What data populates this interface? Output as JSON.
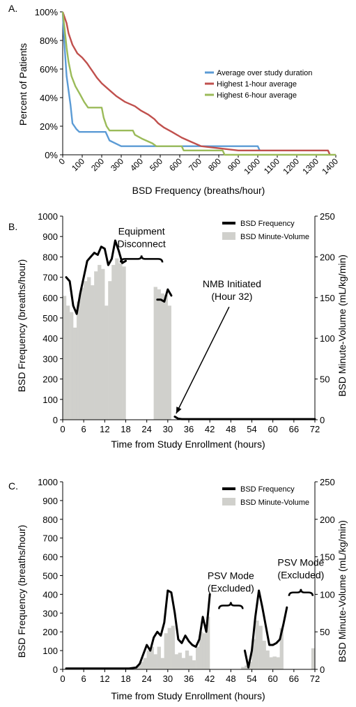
{
  "chart_data": [
    {
      "panel_label": "A.",
      "type": "line",
      "xlabel": "BSD Frequency (breaths/hour)",
      "ylabel": "Percent of Patients",
      "xlim": [
        0,
        1400
      ],
      "ylim": [
        0,
        100
      ],
      "x_ticks": [
        "0",
        "100",
        "200",
        "300",
        "400",
        "500",
        "600",
        "700",
        "800",
        "900",
        "1000",
        "1100",
        "1200",
        "1300",
        "1400"
      ],
      "y_ticks": [
        "0%",
        "20%",
        "40%",
        "60%",
        "80%",
        "100%"
      ],
      "legend_position": "right",
      "series": [
        {
          "name": "Average over study duration",
          "color": "#5b9bd5",
          "points": [
            [
              0,
              100
            ],
            [
              5,
              85
            ],
            [
              10,
              75
            ],
            [
              15,
              65
            ],
            [
              20,
              55
            ],
            [
              30,
              45
            ],
            [
              40,
              35
            ],
            [
              50,
              22
            ],
            [
              60,
              20
            ],
            [
              70,
              18
            ],
            [
              85,
              16
            ],
            [
              220,
              16
            ],
            [
              240,
              10
            ],
            [
              300,
              6
            ],
            [
              310,
              6
            ],
            [
              1000,
              6
            ],
            [
              1010,
              3
            ]
          ]
        },
        {
          "name": "Highest 1-hour average",
          "color": "#c0504d",
          "points": [
            [
              0,
              100
            ],
            [
              10,
              96
            ],
            [
              20,
              92
            ],
            [
              30,
              85
            ],
            [
              50,
              77
            ],
            [
              75,
              71
            ],
            [
              100,
              68
            ],
            [
              125,
              64
            ],
            [
              140,
              61
            ],
            [
              155,
              58
            ],
            [
              175,
              54
            ],
            [
              200,
              50
            ],
            [
              225,
              47
            ],
            [
              250,
              44
            ],
            [
              275,
              41
            ],
            [
              320,
              37
            ],
            [
              370,
              34
            ],
            [
              400,
              31
            ],
            [
              440,
              28
            ],
            [
              470,
              25
            ],
            [
              490,
              22
            ],
            [
              520,
              19
            ],
            [
              560,
              16
            ],
            [
              610,
              12
            ],
            [
              660,
              9
            ],
            [
              710,
              6
            ],
            [
              900,
              3
            ],
            [
              1360,
              3
            ],
            [
              1370,
              0
            ]
          ]
        },
        {
          "name": "Highest 6-hour average",
          "color": "#9bbb59",
          "points": [
            [
              0,
              100
            ],
            [
              10,
              88
            ],
            [
              20,
              75
            ],
            [
              30,
              65
            ],
            [
              45,
              55
            ],
            [
              65,
              48
            ],
            [
              90,
              42
            ],
            [
              110,
              37
            ],
            [
              130,
              33
            ],
            [
              200,
              33
            ],
            [
              210,
              26
            ],
            [
              225,
              20
            ],
            [
              240,
              17
            ],
            [
              360,
              17
            ],
            [
              370,
              14
            ],
            [
              410,
              11
            ],
            [
              460,
              8
            ],
            [
              480,
              6
            ],
            [
              610,
              6
            ],
            [
              620,
              3
            ],
            [
              820,
              3
            ],
            [
              830,
              0
            ],
            [
              1400,
              0
            ]
          ]
        }
      ]
    },
    {
      "panel_label": "B.",
      "type": "bar+line",
      "xlabel": "Time from Study Enrollment (hours)",
      "ylabel_left": "BSD Frequency (breaths/hour)",
      "ylabel_right": "BSD Minute-Volume (mL/kg/min)",
      "xlim": [
        0,
        72
      ],
      "ylim_left": [
        0,
        1000
      ],
      "ylim_right": [
        0,
        250
      ],
      "x_ticks": [
        "0",
        "6",
        "12",
        "18",
        "24",
        "30",
        "36",
        "42",
        "48",
        "54",
        "60",
        "66",
        "72"
      ],
      "y_ticks_left": [
        "0",
        "100",
        "200",
        "300",
        "400",
        "500",
        "600",
        "700",
        "800",
        "900",
        "1000"
      ],
      "y_ticks_right": [
        "0",
        "50",
        "100",
        "150",
        "200",
        "250"
      ],
      "legend_position": "top-right",
      "bar_series": {
        "name": "BSD Minute-Volume",
        "color": "#d0d0cc",
        "hours": [
          1,
          2,
          3,
          4,
          5,
          6,
          7,
          8,
          9,
          10,
          11,
          12,
          13,
          14,
          15,
          16,
          17,
          18,
          27,
          28,
          29,
          30,
          31
        ],
        "values": [
          152,
          140,
          132,
          113,
          145,
          162,
          170,
          175,
          165,
          182,
          190,
          185,
          140,
          170,
          190,
          198,
          192,
          188,
          163,
          160,
          155,
          153,
          140
        ]
      },
      "line_series": {
        "name": "BSD Frequency",
        "color": "#000000",
        "segments": [
          [
            [
              1,
              700
            ],
            [
              2,
              680
            ],
            [
              3,
              560
            ],
            [
              4,
              520
            ],
            [
              5,
              620
            ],
            [
              6,
              700
            ],
            [
              7,
              780
            ],
            [
              8,
              800
            ],
            [
              9,
              820
            ],
            [
              10,
              810
            ],
            [
              11,
              850
            ],
            [
              12,
              840
            ],
            [
              13,
              760
            ],
            [
              14,
              790
            ],
            [
              15,
              880
            ],
            [
              16,
              830
            ],
            [
              17,
              770
            ],
            [
              18,
              780
            ]
          ],
          [
            [
              27,
              590
            ],
            [
              28,
              590
            ],
            [
              29,
              580
            ],
            [
              30,
              640
            ],
            [
              31,
              610
            ]
          ],
          [
            [
              32,
              15
            ],
            [
              33,
              5
            ],
            [
              34,
              3
            ],
            [
              72,
              3
            ]
          ]
        ]
      },
      "annotations": [
        {
          "text": [
            "Equipment",
            "Disconnect"
          ],
          "hour": 22.5,
          "value": 790,
          "type": "brace"
        },
        {
          "text": [
            "NMB Initiated",
            "(Hour 32)"
          ],
          "hour": 32,
          "value": 10,
          "type": "arrow"
        }
      ]
    },
    {
      "panel_label": "C.",
      "type": "bar+line",
      "xlabel": "Time from Study Enrollment (hours)",
      "ylabel_left": "BSD Frequency (breaths/hour)",
      "ylabel_right": "BSD Minute-Volume (mL/kg/min)",
      "xlim": [
        0,
        72
      ],
      "ylim_left": [
        0,
        1000
      ],
      "ylim_right": [
        0,
        250
      ],
      "x_ticks": [
        "0",
        "6",
        "12",
        "18",
        "24",
        "30",
        "36",
        "42",
        "48",
        "54",
        "60",
        "66",
        "72"
      ],
      "y_ticks_left": [
        "0",
        "100",
        "200",
        "300",
        "400",
        "500",
        "600",
        "700",
        "800",
        "900",
        "1000"
      ],
      "y_ticks_right": [
        "0",
        "50",
        "100",
        "150",
        "200",
        "250"
      ],
      "legend_position": "top-right",
      "bar_series": {
        "name": "BSD Minute-Volume",
        "color": "#d0d0cc",
        "hours": [
          21,
          22,
          23,
          24,
          25,
          26,
          27,
          28,
          29,
          30,
          31,
          32,
          33,
          34,
          35,
          36,
          37,
          38,
          39,
          40,
          41,
          42,
          52,
          53,
          54,
          55,
          56,
          57,
          58,
          59,
          60,
          61,
          62,
          63,
          72
        ],
        "values": [
          2,
          5,
          10,
          15,
          25,
          30,
          20,
          30,
          15,
          48,
          55,
          58,
          20,
          22,
          15,
          25,
          18,
          12,
          30,
          50,
          48,
          70,
          3,
          5,
          10,
          40,
          65,
          58,
          38,
          25,
          16,
          17,
          16,
          55,
          28
        ]
      },
      "line_series": {
        "name": "BSD Frequency",
        "color": "#000000",
        "segments": [
          [
            [
              1,
              5
            ],
            [
              4,
              5
            ],
            [
              8,
              5
            ],
            [
              12,
              5
            ],
            [
              16,
              5
            ],
            [
              19,
              5
            ],
            [
              21,
              10
            ],
            [
              22,
              30
            ],
            [
              23,
              80
            ],
            [
              24,
              130
            ],
            [
              25,
              100
            ],
            [
              26,
              170
            ],
            [
              27,
              200
            ],
            [
              28,
              180
            ],
            [
              29,
              250
            ],
            [
              30,
              420
            ],
            [
              31,
              410
            ],
            [
              32,
              300
            ],
            [
              33,
              160
            ],
            [
              34,
              140
            ],
            [
              35,
              180
            ],
            [
              36,
              150
            ],
            [
              37,
              130
            ],
            [
              38,
              120
            ],
            [
              39,
              160
            ],
            [
              40,
              280
            ],
            [
              41,
              200
            ],
            [
              42,
              400
            ]
          ],
          [
            [
              52,
              100
            ],
            [
              53,
              10
            ],
            [
              54,
              100
            ],
            [
              55,
              280
            ],
            [
              56,
              420
            ],
            [
              57,
              330
            ],
            [
              58,
              230
            ],
            [
              59,
              130
            ],
            [
              60,
              130
            ],
            [
              61,
              140
            ],
            [
              62,
              160
            ],
            [
              63,
              240
            ],
            [
              64,
              330
            ]
          ]
        ]
      },
      "annotations": [
        {
          "text": [
            "PSV Mode",
            "(Excluded)"
          ],
          "hour": 48,
          "value": 340,
          "type": "brace"
        },
        {
          "text": [
            "PSV Mode",
            "(Excluded)"
          ],
          "hour": 68,
          "value": 410,
          "type": "brace"
        }
      ]
    }
  ]
}
